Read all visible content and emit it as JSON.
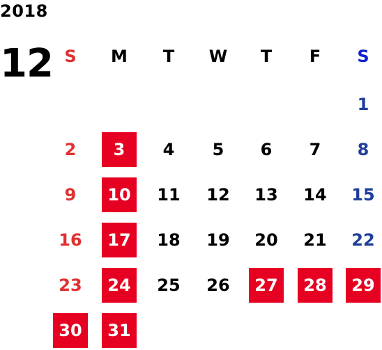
{
  "calendar": {
    "year": "2018",
    "month": "12",
    "weekdays": [
      "S",
      "M",
      "T",
      "W",
      "T",
      "F",
      "S"
    ],
    "days": [
      {
        "label": "1",
        "col": 6,
        "row": 0,
        "highlighted": false
      },
      {
        "label": "2",
        "col": 0,
        "row": 1,
        "highlighted": false
      },
      {
        "label": "3",
        "col": 1,
        "row": 1,
        "highlighted": true
      },
      {
        "label": "4",
        "col": 2,
        "row": 1,
        "highlighted": false
      },
      {
        "label": "5",
        "col": 3,
        "row": 1,
        "highlighted": false
      },
      {
        "label": "6",
        "col": 4,
        "row": 1,
        "highlighted": false
      },
      {
        "label": "7",
        "col": 5,
        "row": 1,
        "highlighted": false
      },
      {
        "label": "8",
        "col": 6,
        "row": 1,
        "highlighted": false
      },
      {
        "label": "9",
        "col": 0,
        "row": 2,
        "highlighted": false
      },
      {
        "label": "10",
        "col": 1,
        "row": 2,
        "highlighted": true
      },
      {
        "label": "11",
        "col": 2,
        "row": 2,
        "highlighted": false
      },
      {
        "label": "12",
        "col": 3,
        "row": 2,
        "highlighted": false
      },
      {
        "label": "13",
        "col": 4,
        "row": 2,
        "highlighted": false
      },
      {
        "label": "14",
        "col": 5,
        "row": 2,
        "highlighted": false
      },
      {
        "label": "15",
        "col": 6,
        "row": 2,
        "highlighted": false
      },
      {
        "label": "16",
        "col": 0,
        "row": 3,
        "highlighted": false
      },
      {
        "label": "17",
        "col": 1,
        "row": 3,
        "highlighted": true
      },
      {
        "label": "18",
        "col": 2,
        "row": 3,
        "highlighted": false
      },
      {
        "label": "19",
        "col": 3,
        "row": 3,
        "highlighted": false
      },
      {
        "label": "20",
        "col": 4,
        "row": 3,
        "highlighted": false
      },
      {
        "label": "21",
        "col": 5,
        "row": 3,
        "highlighted": false
      },
      {
        "label": "22",
        "col": 6,
        "row": 3,
        "highlighted": false
      },
      {
        "label": "23",
        "col": 0,
        "row": 4,
        "highlighted": false
      },
      {
        "label": "24",
        "col": 1,
        "row": 4,
        "highlighted": true
      },
      {
        "label": "25",
        "col": 2,
        "row": 4,
        "highlighted": false
      },
      {
        "label": "26",
        "col": 3,
        "row": 4,
        "highlighted": false
      },
      {
        "label": "27",
        "col": 4,
        "row": 4,
        "highlighted": true
      },
      {
        "label": "28",
        "col": 5,
        "row": 4,
        "highlighted": true
      },
      {
        "label": "29",
        "col": 6,
        "row": 4,
        "highlighted": true
      },
      {
        "label": "30",
        "col": 0,
        "row": 5,
        "highlighted": true
      },
      {
        "label": "31",
        "col": 1,
        "row": 5,
        "highlighted": true
      }
    ],
    "colors": {
      "sunday": "#e03030",
      "saturday_header": "#1020d0",
      "saturday": "#1f3f9a",
      "weekday": "#000000",
      "highlight_bg": "#e60021",
      "highlight_text": "#ffffff"
    }
  }
}
